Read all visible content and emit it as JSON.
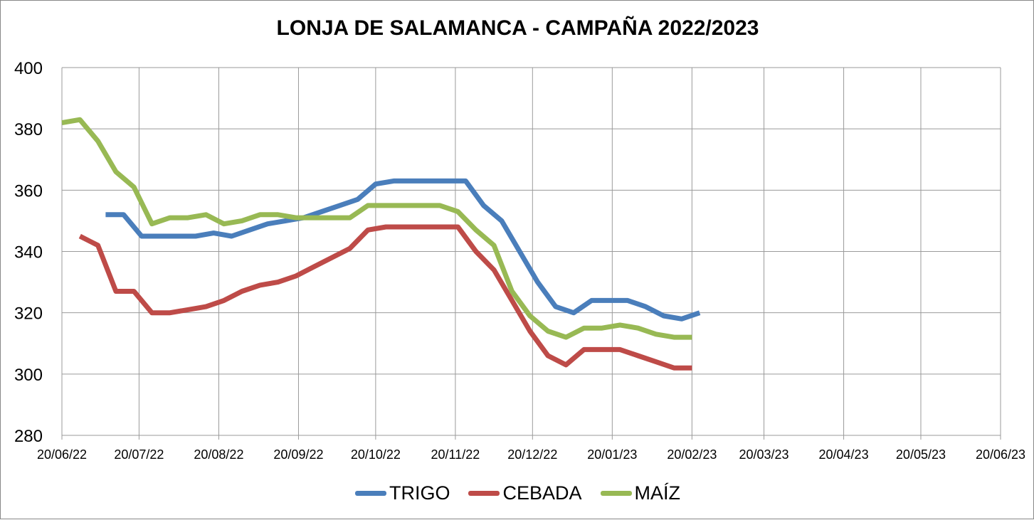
{
  "chart_data": {
    "type": "line",
    "title": "LONJA DE SALAMANCA - CAMPAÑA 2022/2023",
    "xlabel": "",
    "ylabel": "",
    "ylim": [
      280,
      400
    ],
    "yticks": [
      "280",
      "300",
      "320",
      "340",
      "360",
      "380",
      "400"
    ],
    "xlim": [
      "2022-06-20",
      "2023-06-20"
    ],
    "xticks": [
      "20/06/22",
      "20/07/22",
      "20/08/22",
      "20/09/22",
      "20/10/22",
      "20/11/22",
      "20/12/22",
      "20/01/23",
      "20/02/23",
      "20/03/23",
      "20/04/23",
      "20/05/23",
      "20/06/23"
    ],
    "grid": true,
    "legend_position": "bottom",
    "series": [
      {
        "name": "TRIGO",
        "color": "#4a7ebb",
        "points": [
          [
            "2022-07-07",
            352
          ],
          [
            "2022-07-14",
            352
          ],
          [
            "2022-07-21",
            345
          ],
          [
            "2022-07-28",
            345
          ],
          [
            "2022-08-04",
            345
          ],
          [
            "2022-08-11",
            345
          ],
          [
            "2022-08-18",
            346
          ],
          [
            "2022-08-25",
            345
          ],
          [
            "2022-09-01",
            347
          ],
          [
            "2022-09-08",
            349
          ],
          [
            "2022-09-15",
            350
          ],
          [
            "2022-09-22",
            351
          ],
          [
            "2022-09-29",
            353
          ],
          [
            "2022-10-06",
            355
          ],
          [
            "2022-10-13",
            357
          ],
          [
            "2022-10-20",
            362
          ],
          [
            "2022-10-27",
            363
          ],
          [
            "2022-11-03",
            363
          ],
          [
            "2022-11-10",
            363
          ],
          [
            "2022-11-17",
            363
          ],
          [
            "2022-11-24",
            363
          ],
          [
            "2022-12-01",
            355
          ],
          [
            "2022-12-08",
            350
          ],
          [
            "2022-12-15",
            340
          ],
          [
            "2022-12-22",
            330
          ],
          [
            "2022-12-29",
            322
          ],
          [
            "2023-01-05",
            320
          ],
          [
            "2023-01-12",
            324
          ],
          [
            "2023-01-19",
            324
          ],
          [
            "2023-01-26",
            324
          ],
          [
            "2023-02-02",
            322
          ],
          [
            "2023-02-09",
            319
          ],
          [
            "2023-02-16",
            318
          ],
          [
            "2023-02-23",
            320
          ]
        ]
      },
      {
        "name": "CEBADA",
        "color": "#be4b48",
        "points": [
          [
            "2022-06-27",
            345
          ],
          [
            "2022-07-04",
            342
          ],
          [
            "2022-07-11",
            327
          ],
          [
            "2022-07-18",
            327
          ],
          [
            "2022-07-25",
            320
          ],
          [
            "2022-08-01",
            320
          ],
          [
            "2022-08-08",
            321
          ],
          [
            "2022-08-15",
            322
          ],
          [
            "2022-08-22",
            324
          ],
          [
            "2022-08-29",
            327
          ],
          [
            "2022-09-05",
            329
          ],
          [
            "2022-09-12",
            330
          ],
          [
            "2022-09-19",
            332
          ],
          [
            "2022-09-26",
            335
          ],
          [
            "2022-10-03",
            338
          ],
          [
            "2022-10-10",
            341
          ],
          [
            "2022-10-17",
            347
          ],
          [
            "2022-10-24",
            348
          ],
          [
            "2022-10-31",
            348
          ],
          [
            "2022-11-07",
            348
          ],
          [
            "2022-11-14",
            348
          ],
          [
            "2022-11-21",
            348
          ],
          [
            "2022-11-28",
            340
          ],
          [
            "2022-12-05",
            334
          ],
          [
            "2022-12-12",
            324
          ],
          [
            "2022-12-19",
            314
          ],
          [
            "2022-12-26",
            306
          ],
          [
            "2023-01-02",
            303
          ],
          [
            "2023-01-09",
            308
          ],
          [
            "2023-01-16",
            308
          ],
          [
            "2023-01-23",
            308
          ],
          [
            "2023-01-30",
            306
          ],
          [
            "2023-02-06",
            304
          ],
          [
            "2023-02-13",
            302
          ],
          [
            "2023-02-20",
            302
          ]
        ]
      },
      {
        "name": "MAÍZ",
        "color": "#98b954",
        "points": [
          [
            "2022-06-20",
            382
          ],
          [
            "2022-06-27",
            383
          ],
          [
            "2022-07-04",
            376
          ],
          [
            "2022-07-11",
            366
          ],
          [
            "2022-07-18",
            361
          ],
          [
            "2022-07-25",
            349
          ],
          [
            "2022-08-01",
            351
          ],
          [
            "2022-08-08",
            351
          ],
          [
            "2022-08-15",
            352
          ],
          [
            "2022-08-22",
            349
          ],
          [
            "2022-08-29",
            350
          ],
          [
            "2022-09-05",
            352
          ],
          [
            "2022-09-12",
            352
          ],
          [
            "2022-09-19",
            351
          ],
          [
            "2022-09-26",
            351
          ],
          [
            "2022-10-03",
            351
          ],
          [
            "2022-10-10",
            351
          ],
          [
            "2022-10-17",
            355
          ],
          [
            "2022-10-24",
            355
          ],
          [
            "2022-10-31",
            355
          ],
          [
            "2022-11-07",
            355
          ],
          [
            "2022-11-14",
            355
          ],
          [
            "2022-11-21",
            353
          ],
          [
            "2022-11-28",
            347
          ],
          [
            "2022-12-05",
            342
          ],
          [
            "2022-12-12",
            327
          ],
          [
            "2022-12-19",
            319
          ],
          [
            "2022-12-26",
            314
          ],
          [
            "2023-01-02",
            312
          ],
          [
            "2023-01-09",
            315
          ],
          [
            "2023-01-16",
            315
          ],
          [
            "2023-01-23",
            316
          ],
          [
            "2023-01-30",
            315
          ],
          [
            "2023-02-06",
            313
          ],
          [
            "2023-02-13",
            312
          ],
          [
            "2023-02-20",
            312
          ]
        ]
      }
    ]
  }
}
